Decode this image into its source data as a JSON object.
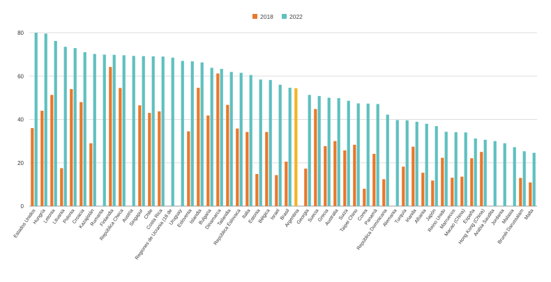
{
  "chart_data": {
    "type": "bar",
    "title": "",
    "xlabel": "",
    "ylabel": "",
    "ylim": [
      0,
      80
    ],
    "yticks": [
      0,
      20,
      40,
      60,
      80
    ],
    "grid": true,
    "legend_position": "top-center",
    "categories": [
      "Estados Unidos",
      "Hungría",
      "Letonia",
      "Lituania",
      "Polonia",
      "Croacia",
      "Kazajistán",
      "Rumania",
      "Finlandia",
      "República Checa",
      "Austria",
      "Singapur",
      "Chile",
      "Costa Rica",
      "Regiones de Ucrania (18 de",
      "Uruguay",
      "Eslovenia",
      "Islandia",
      "Bulgaria",
      "Dinamarca",
      "Tailandia",
      "República Eslovaca",
      "Italia",
      "Estonia",
      "Bélgica",
      "Israel",
      "Brasil",
      "Argentina",
      "Georgia",
      "Suecia",
      "Grecia",
      "Australia",
      "Suiza",
      "Taipei Chino",
      "Corea",
      "Panamá",
      "República Dominicana",
      "Alemania",
      "Turquía",
      "Irlanda",
      "Albania",
      "Japón",
      "Reino Unido",
      "Marruecos",
      "Macao (China)",
      "España",
      "Hong Kong (China)",
      "Arabia Saudita",
      "Jordania",
      "Malasia",
      "Brunéi Darussalam",
      "Malta"
    ],
    "series": [
      {
        "name": "2018",
        "color": "#e8782b",
        "values": [
          36,
          44,
          51.3,
          17.5,
          54,
          48,
          29,
          null,
          64.2,
          54.5,
          null,
          46.5,
          43,
          43.7,
          null,
          null,
          34.5,
          54.6,
          41.8,
          61.2,
          46.7,
          35.8,
          34.2,
          14.8,
          34.2,
          14.3,
          20.5,
          54.4,
          17.3,
          44.8,
          27.7,
          30,
          25.7,
          28.3,
          8,
          24.1,
          12.4,
          null,
          18.2,
          27.4,
          15.4,
          11.8,
          22.3,
          13.1,
          13.6,
          22.1,
          25,
          null,
          null,
          null,
          13,
          10.9
        ]
      },
      {
        "name": "2022",
        "color": "#5ec0bf",
        "values": [
          80,
          79.6,
          76.2,
          73.5,
          72.9,
          71,
          70.2,
          69.9,
          69.8,
          69.6,
          69.3,
          69.2,
          69.1,
          69,
          68.5,
          67,
          66.8,
          66.3,
          63.8,
          63.3,
          61.9,
          61.5,
          60.5,
          58.4,
          58.2,
          56,
          54.6,
          null,
          51.3,
          50.8,
          50,
          49.8,
          48.6,
          47.4,
          47.3,
          47.1,
          42.2,
          39.7,
          39.6,
          38.9,
          38,
          36.9,
          34.3,
          34.1,
          34,
          31.2,
          30.6,
          30,
          29,
          27.2,
          25.3,
          24.6
        ]
      }
    ],
    "highlight": {
      "category": "Argentina",
      "series": "2018",
      "color": "#f2b322"
    }
  }
}
